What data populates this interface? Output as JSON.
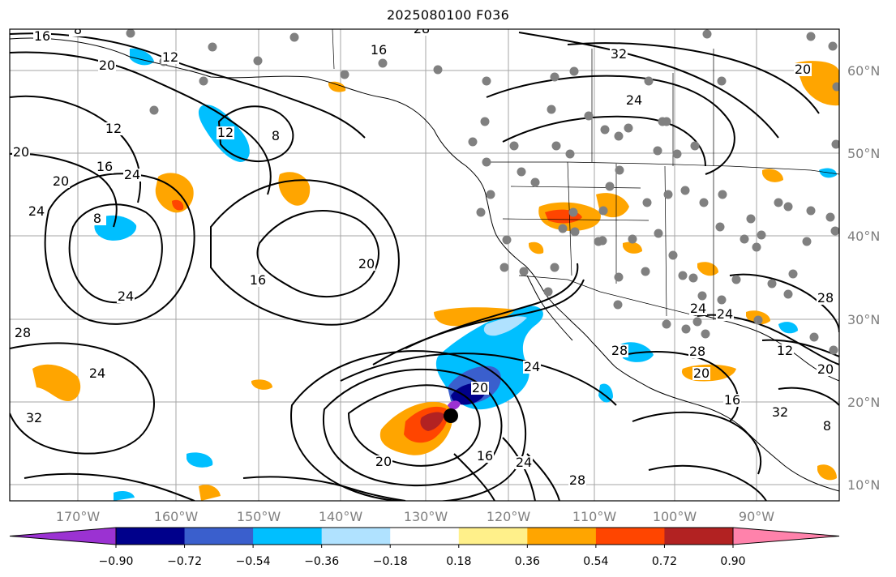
{
  "title": "2025080100 F036",
  "map": {
    "background": "#ffffff",
    "gridlines": true,
    "coastlines": true,
    "state_borders": true,
    "contour_color": "#000000",
    "station_marker_color": "#808080",
    "storm_marker_color": "#000000"
  },
  "axes": {
    "lon_labels": [
      "170°W",
      "160°W",
      "150°W",
      "140°W",
      "130°W",
      "120°W",
      "110°W",
      "100°W",
      "90°W"
    ],
    "lat_labels": [
      "60°N",
      "50°N",
      "40°N",
      "30°N",
      "20°N",
      "10°N"
    ]
  },
  "colorbar": {
    "colors": [
      "#9b32d2",
      "#00008b",
      "#3a5fcd",
      "#00bfff",
      "#b0e2ff",
      "#ffffff",
      "#fff08a",
      "#ffa500",
      "#ff4500",
      "#b22222",
      "#ff82ab"
    ],
    "tick_labels": [
      "−0.90",
      "−0.72",
      "−0.54",
      "−0.36",
      "−0.18",
      "0.18",
      "0.36",
      "0.54",
      "0.72",
      "0.90"
    ],
    "extend": "both"
  },
  "contour_labels": [
    "16",
    "8",
    "12",
    "20",
    "12",
    "16",
    "8",
    "12",
    "20",
    "24",
    "24",
    "8",
    "16",
    "20",
    "24",
    "28",
    "24",
    "32",
    "20",
    "20",
    "24",
    "28",
    "20",
    "16",
    "24",
    "28",
    "32",
    "24",
    "28",
    "16",
    "20",
    "20",
    "24",
    "28",
    "24",
    "12",
    "28",
    "20",
    "16",
    "32",
    "8"
  ]
}
